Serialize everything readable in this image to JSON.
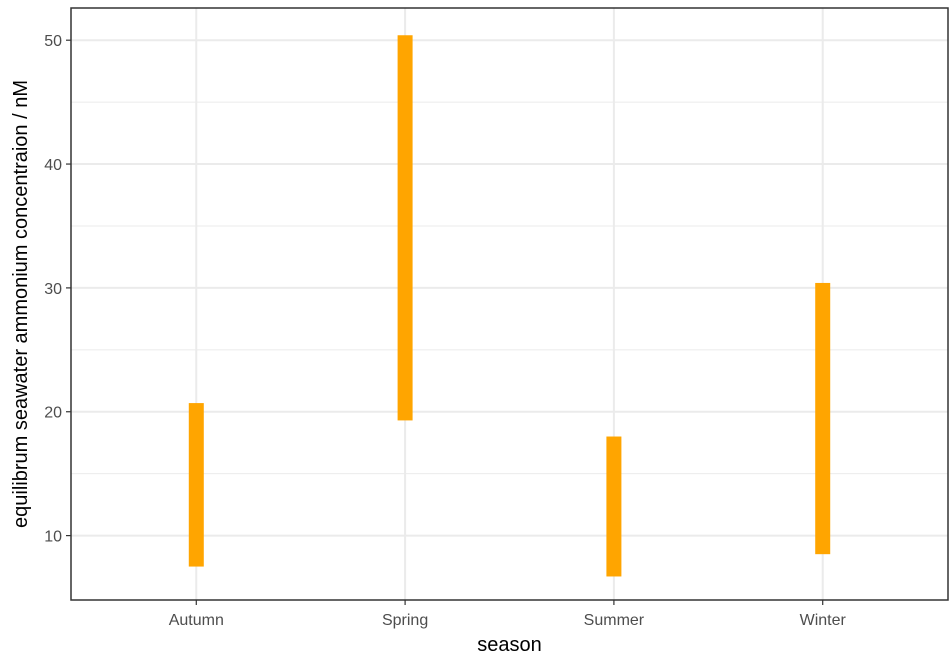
{
  "chart_data": {
    "type": "range_bar",
    "title": "",
    "xlabel": "season",
    "ylabel": "equilibrum seawater ammonium concentraion / nM",
    "categories": [
      "Autumn",
      "Spring",
      "Summer",
      "Winter"
    ],
    "ranges": [
      {
        "category": "Autumn",
        "low": 7.5,
        "high": 20.7
      },
      {
        "category": "Spring",
        "low": 19.3,
        "high": 50.4
      },
      {
        "category": "Summer",
        "low": 6.7,
        "high": 18.0
      },
      {
        "category": "Winter",
        "low": 8.5,
        "high": 30.4
      }
    ],
    "ylim": [
      4.8,
      52.6
    ],
    "yticks": [
      10,
      20,
      30,
      40,
      50
    ],
    "grid": true,
    "legend": "none",
    "colors": {
      "bar": "#ffa500",
      "grid": "#ebebeb",
      "axis": "#333333",
      "tick_label": "#4d4d4d",
      "background": "#ffffff"
    }
  }
}
